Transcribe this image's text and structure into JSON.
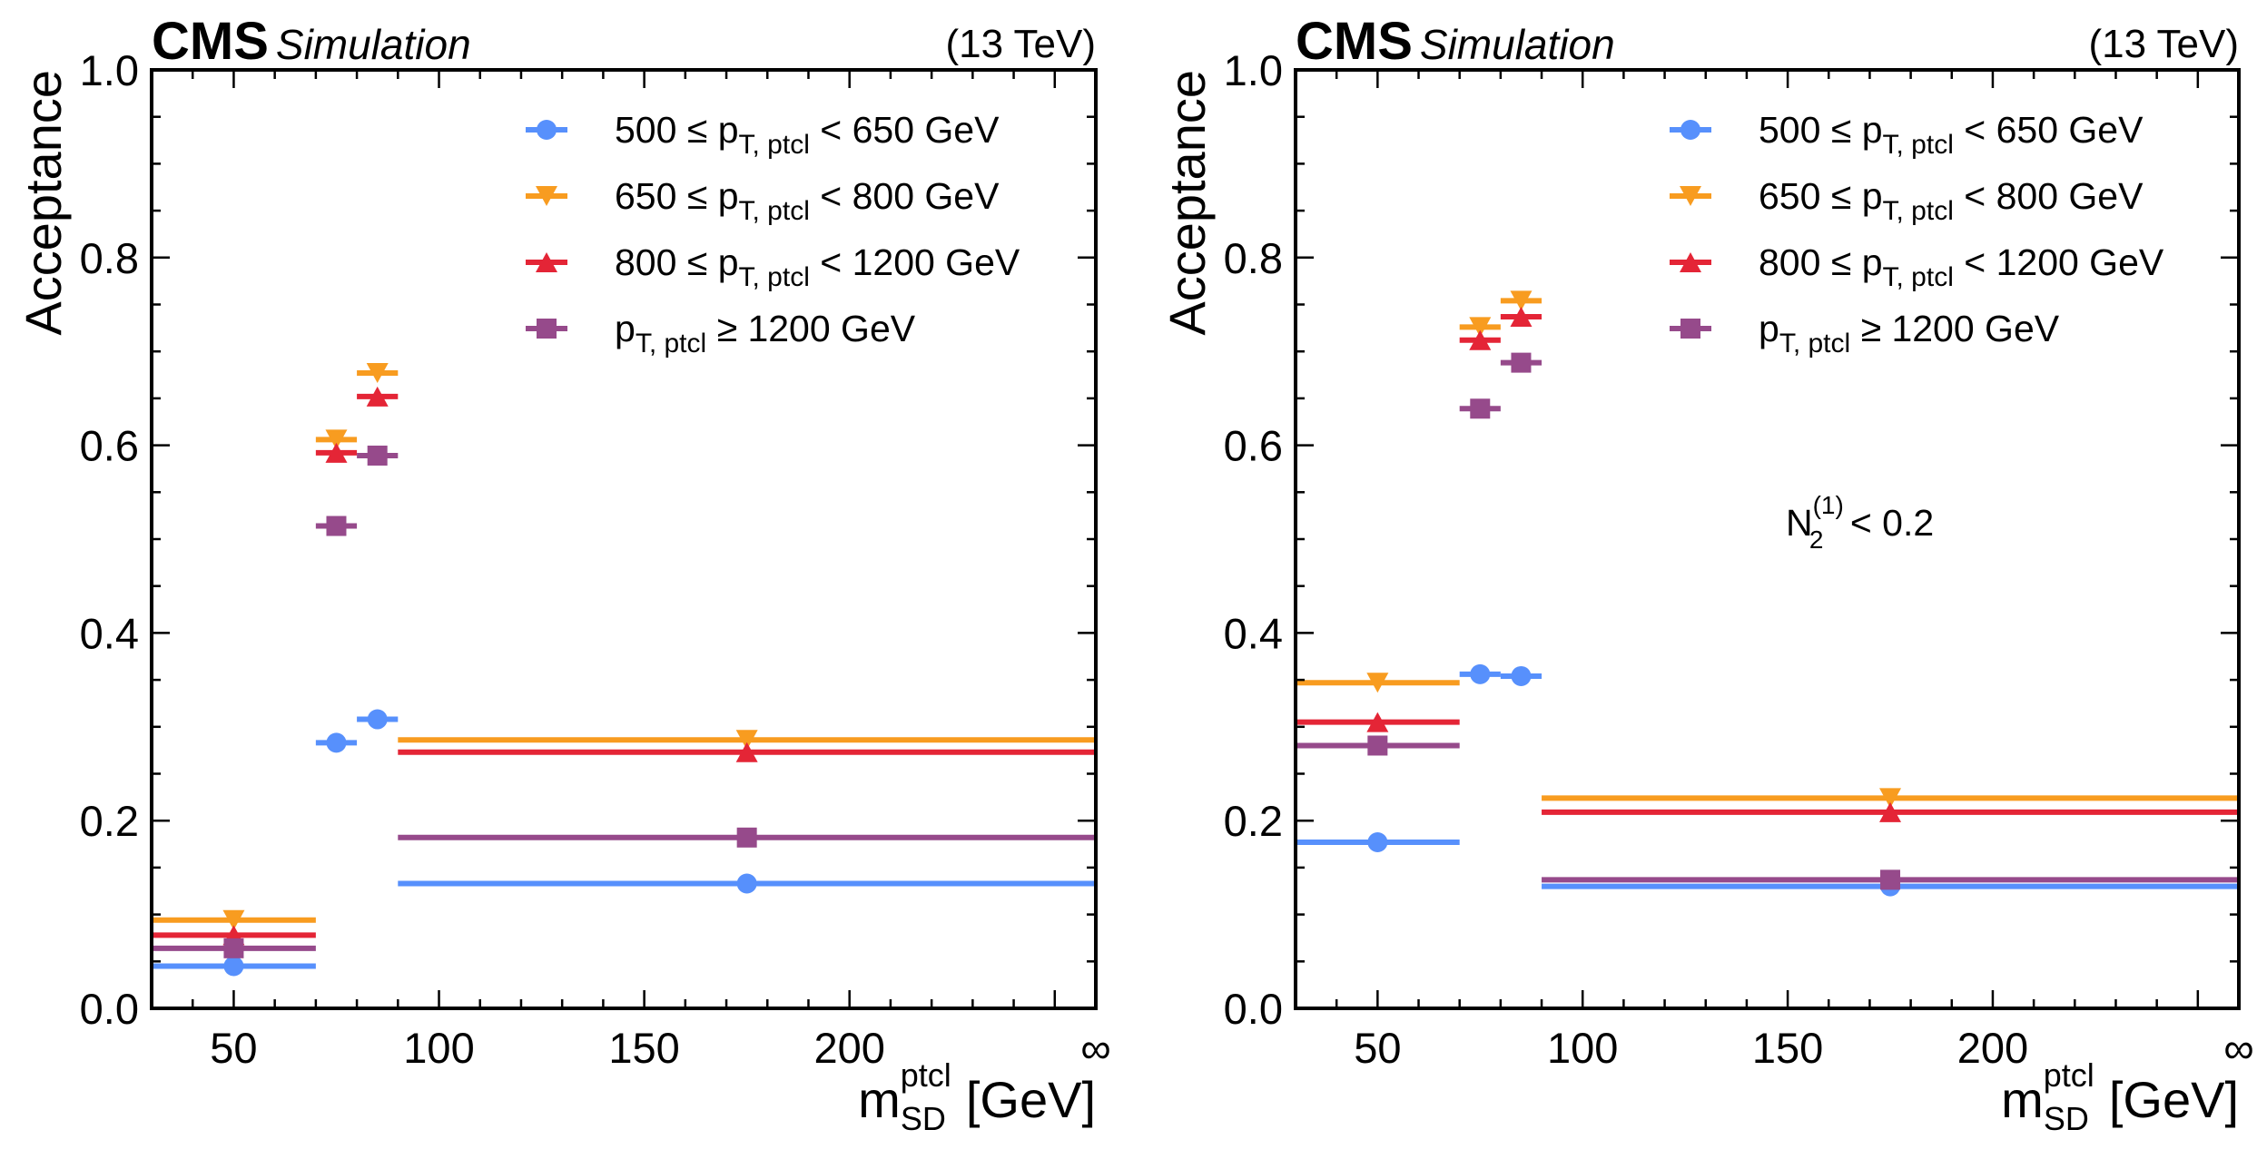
{
  "chart_data": [
    {
      "type": "scatter",
      "experiment_label": "CMS",
      "status_label": "Simulation",
      "energy_label": "(13 TeV)",
      "ylabel": "Acceptance",
      "xlabel": {
        "main": "m",
        "sub": "SD",
        "sup": "ptcl",
        "unit": "[GeV]"
      },
      "xlim": [
        30,
        260
      ],
      "ylim": [
        0.0,
        1.0
      ],
      "x_ticks": [
        50,
        100,
        150,
        200
      ],
      "x_tick_labels": [
        "50",
        "100",
        "150",
        "200"
      ],
      "x_overflow_label": "∞",
      "y_ticks": [
        0.0,
        0.2,
        0.4,
        0.6,
        0.8,
        1.0
      ],
      "y_tick_labels": [
        "0.0",
        "0.2",
        "0.4",
        "0.6",
        "0.8",
        "1.0"
      ],
      "grid": false,
      "legend_position": "top-right",
      "bins": [
        [
          30,
          70
        ],
        [
          70,
          80
        ],
        [
          80,
          90
        ],
        [
          90,
          260
        ]
      ],
      "bin_centers": [
        50,
        75,
        85,
        175
      ],
      "annotation": null,
      "series": [
        {
          "name": {
            "pre": "500 ≤ p",
            "sub": "T, ptcl",
            "post": " < 650 GeV"
          },
          "marker": "circle",
          "color": "#5790fc",
          "values": [
            0.045,
            0.283,
            0.308,
            0.133
          ]
        },
        {
          "name": {
            "pre": "650 ≤ p",
            "sub": "T, ptcl",
            "post": " < 800 GeV"
          },
          "marker": "triangle-down",
          "color": "#f89c20",
          "values": [
            0.094,
            0.606,
            0.677,
            0.286
          ]
        },
        {
          "name": {
            "pre": "800 ≤ p",
            "sub": "T, ptcl",
            "post": " < 1200 GeV"
          },
          "marker": "triangle-up",
          "color": "#e42536",
          "values": [
            0.078,
            0.592,
            0.652,
            0.273
          ]
        },
        {
          "name": {
            "pre": "p",
            "sub": "T, ptcl",
            "post": " ≥ 1200 GeV"
          },
          "marker": "square",
          "color": "#964a8b",
          "values": [
            0.064,
            0.514,
            0.589,
            0.182
          ]
        }
      ]
    },
    {
      "type": "scatter",
      "experiment_label": "CMS",
      "status_label": "Simulation",
      "energy_label": "(13 TeV)",
      "ylabel": "Acceptance",
      "xlabel": {
        "main": "m",
        "sub": "SD",
        "sup": "ptcl",
        "unit": "[GeV]"
      },
      "xlim": [
        30,
        260
      ],
      "ylim": [
        0.0,
        1.0
      ],
      "x_ticks": [
        50,
        100,
        150,
        200
      ],
      "x_tick_labels": [
        "50",
        "100",
        "150",
        "200"
      ],
      "x_overflow_label": "∞",
      "y_ticks": [
        0.0,
        0.2,
        0.4,
        0.6,
        0.8,
        1.0
      ],
      "y_tick_labels": [
        "0.0",
        "0.2",
        "0.4",
        "0.6",
        "0.8",
        "1.0"
      ],
      "grid": false,
      "legend_position": "top-right",
      "bins": [
        [
          30,
          70
        ],
        [
          70,
          80
        ],
        [
          80,
          90
        ],
        [
          90,
          260
        ]
      ],
      "bin_centers": [
        50,
        75,
        85,
        175
      ],
      "annotation": {
        "main": "N",
        "sub": "2",
        "sup": "(1)",
        "post": " < 0.2"
      },
      "series": [
        {
          "name": {
            "pre": "500 ≤ p",
            "sub": "T, ptcl",
            "post": " < 650 GeV"
          },
          "marker": "circle",
          "color": "#5790fc",
          "values": [
            0.177,
            0.356,
            0.354,
            0.13
          ]
        },
        {
          "name": {
            "pre": "650 ≤ p",
            "sub": "T, ptcl",
            "post": " < 800 GeV"
          },
          "marker": "triangle-down",
          "color": "#f89c20",
          "values": [
            0.347,
            0.726,
            0.754,
            0.224
          ]
        },
        {
          "name": {
            "pre": "800 ≤ p",
            "sub": "T, ptcl",
            "post": " < 1200 GeV"
          },
          "marker": "triangle-up",
          "color": "#e42536",
          "values": [
            0.305,
            0.712,
            0.737,
            0.209
          ]
        },
        {
          "name": {
            "pre": "p",
            "sub": "T, ptcl",
            "post": " ≥ 1200 GeV"
          },
          "marker": "square",
          "color": "#964a8b",
          "values": [
            0.28,
            0.639,
            0.688,
            0.137
          ]
        }
      ]
    }
  ]
}
